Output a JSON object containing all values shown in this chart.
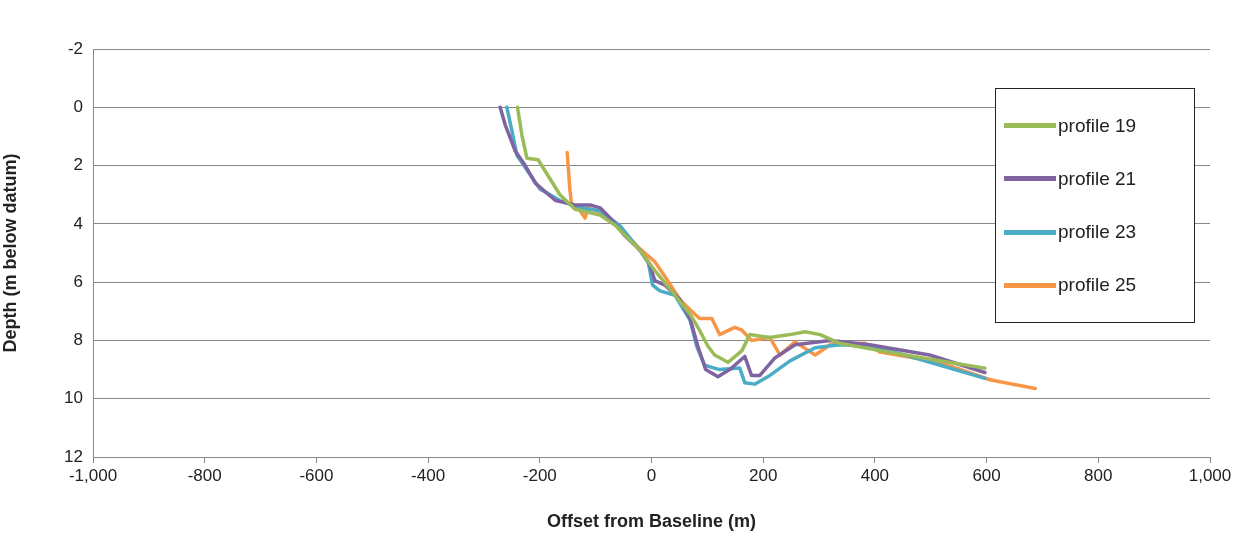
{
  "chart_data": {
    "type": "line",
    "xlabel": "Offset from Baseline (m)",
    "ylabel": "Depth (m below datum)",
    "xlim": [
      -1000,
      1000
    ],
    "xticks": [
      {
        "value": -1000,
        "label": "-1,000"
      },
      -800,
      -600,
      -400,
      -200,
      0,
      200,
      400,
      600,
      800,
      {
        "value": 1000,
        "label": "1,000"
      }
    ],
    "ylim": [
      12,
      -2
    ],
    "yticks": [
      -2,
      0,
      2,
      4,
      6,
      8,
      10,
      12
    ],
    "grid": "y",
    "legend": "top right",
    "marker": "none",
    "line_style": "solid",
    "series": [
      {
        "name": "profile 19",
        "color": "#9bbb59",
        "x": [
          -240,
          -232,
          -223,
          -203,
          -164,
          -137,
          -92,
          -65,
          -21,
          6,
          42,
          69,
          86,
          101,
          113,
          137,
          162,
          176,
          212,
          248,
          275,
          302,
          337,
          409,
          516,
          597
        ],
        "values": [
          0,
          0.96,
          1.75,
          1.8,
          3.0,
          3.5,
          3.7,
          4.05,
          4.9,
          5.6,
          6.45,
          7.1,
          7.65,
          8.2,
          8.5,
          8.75,
          8.35,
          7.8,
          7.9,
          7.8,
          7.7,
          7.8,
          8.1,
          8.35,
          8.7,
          8.95
        ]
      },
      {
        "name": "profile 21",
        "color": "#8064a2",
        "x": [
          -271,
          -262,
          -244,
          -226,
          -208,
          -172,
          -137,
          -110,
          -92,
          -74,
          -48,
          -21,
          -3,
          6,
          24,
          51,
          69,
          83,
          97,
          119,
          140,
          167,
          179,
          194,
          221,
          257,
          320,
          391,
          498,
          597
        ],
        "values": [
          0,
          0.6,
          1.5,
          2.0,
          2.6,
          3.2,
          3.35,
          3.35,
          3.45,
          3.8,
          4.4,
          4.9,
          5.4,
          5.95,
          6.1,
          6.6,
          7.25,
          8.2,
          9.0,
          9.25,
          9.0,
          8.55,
          9.2,
          9.2,
          8.6,
          8.15,
          8.0,
          8.15,
          8.5,
          9.1
        ]
      },
      {
        "name": "profile 23",
        "color": "#4bacc6",
        "x": [
          -259,
          -250,
          -241,
          -223,
          -200,
          -164,
          -128,
          -92,
          -57,
          -21,
          -6,
          2,
          15,
          42,
          69,
          81,
          95,
          122,
          158,
          167,
          185,
          212,
          248,
          293,
          337,
          391,
          454,
          597
        ],
        "values": [
          0,
          0.8,
          1.65,
          2.15,
          2.8,
          3.2,
          3.45,
          3.55,
          4.05,
          4.9,
          5.3,
          6.1,
          6.3,
          6.45,
          7.3,
          8.2,
          8.85,
          9.0,
          8.95,
          9.45,
          9.5,
          9.2,
          8.7,
          8.25,
          8.15,
          8.2,
          8.5,
          9.3
        ]
      },
      {
        "name": "profile 25",
        "color": "#f79646",
        "x": [
          -151,
          -146,
          -143,
          -128,
          -119,
          -114,
          -92,
          -57,
          -21,
          6,
          29,
          51,
          69,
          86,
          108,
          122,
          149,
          162,
          179,
          212,
          230,
          257,
          293,
          320,
          382,
          409,
          516,
          606,
          687
        ],
        "values": [
          1.55,
          2.85,
          3.35,
          3.55,
          3.8,
          3.45,
          3.6,
          4.15,
          4.85,
          5.3,
          5.95,
          6.6,
          6.95,
          7.25,
          7.25,
          7.8,
          7.55,
          7.65,
          8.0,
          7.9,
          8.5,
          8.05,
          8.5,
          8.15,
          8.1,
          8.4,
          8.75,
          9.35,
          9.65
        ]
      }
    ]
  }
}
